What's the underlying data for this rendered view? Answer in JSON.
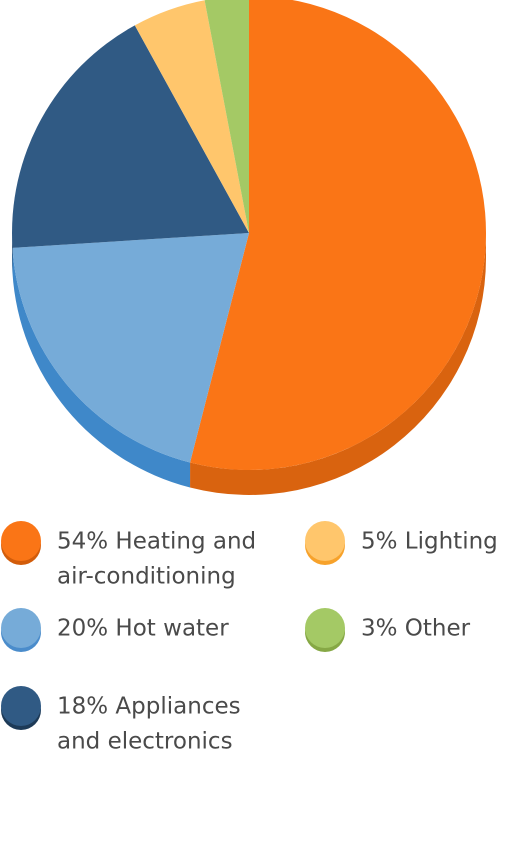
{
  "chart_data": {
    "type": "pie",
    "title": "",
    "slices": [
      {
        "label": "Heating and air-conditioning",
        "value": 54,
        "legend_lines": [
          "54% Heating and",
          "air-conditioning"
        ],
        "color": "#FA7516",
        "side_color": "#D9630F",
        "marker_edge": "#D25C0A"
      },
      {
        "label": "Hot water",
        "value": 20,
        "legend_lines": [
          "20% Hot water"
        ],
        "color": "#76ABD8",
        "side_color": "#3F88C9",
        "marker_edge": "#4A8CCB"
      },
      {
        "label": "Appliances and electronics",
        "value": 18,
        "legend_lines": [
          "18% Appliances",
          "and electronics"
        ],
        "color": "#305A84",
        "side_color": "#203F5E",
        "marker_edge": "#1D3A57"
      },
      {
        "label": "Lighting",
        "value": 5,
        "legend_lines": [
          "5% Lighting"
        ],
        "color": "#FFC66C",
        "side_color": "#F5A623",
        "marker_edge": "#F7A22B"
      },
      {
        "label": "Other",
        "value": 3,
        "legend_lines": [
          "3% Other"
        ],
        "color": "#A4C965",
        "side_color": "#7FA443",
        "marker_edge": "#86A845"
      }
    ],
    "legend_position": "bottom",
    "legend_columns": 2
  }
}
